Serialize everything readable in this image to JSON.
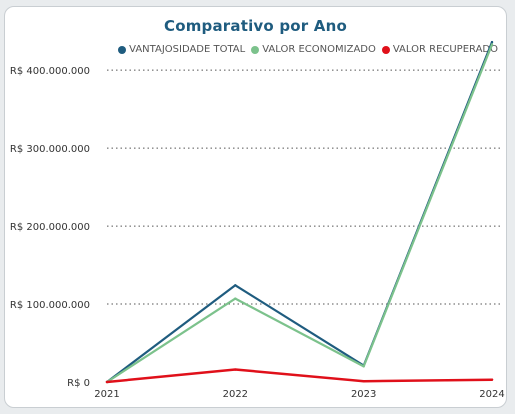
{
  "chart_data": {
    "type": "line",
    "title": "Comparativo por Ano",
    "x": [
      "2021",
      "2022",
      "2023",
      "2024"
    ],
    "y_ticks": [
      {
        "value": 0,
        "label": "R$ 0"
      },
      {
        "value": 100000000,
        "label": "R$ 100.000.000"
      },
      {
        "value": 200000000,
        "label": "R$ 200.000.000"
      },
      {
        "value": 300000000,
        "label": "R$ 300.000.000"
      },
      {
        "value": 400000000,
        "label": "R$ 400.000.000"
      }
    ],
    "ylim": [
      0,
      440000000
    ],
    "grid": true,
    "legend_position": "top-right",
    "series": [
      {
        "name": "VANTAJOSIDADE TOTAL",
        "color": "#1f5c7f",
        "values": [
          0,
          124000000,
          21000000,
          436000000
        ]
      },
      {
        "name": "VALOR ECONOMIZADO",
        "color": "#7cc28c",
        "values": [
          0,
          107000000,
          20000000,
          433000000
        ]
      },
      {
        "name": "VALOR RECUPERADO",
        "color": "#e0101a",
        "values": [
          0,
          16000000,
          1000000,
          3000000
        ]
      }
    ]
  }
}
